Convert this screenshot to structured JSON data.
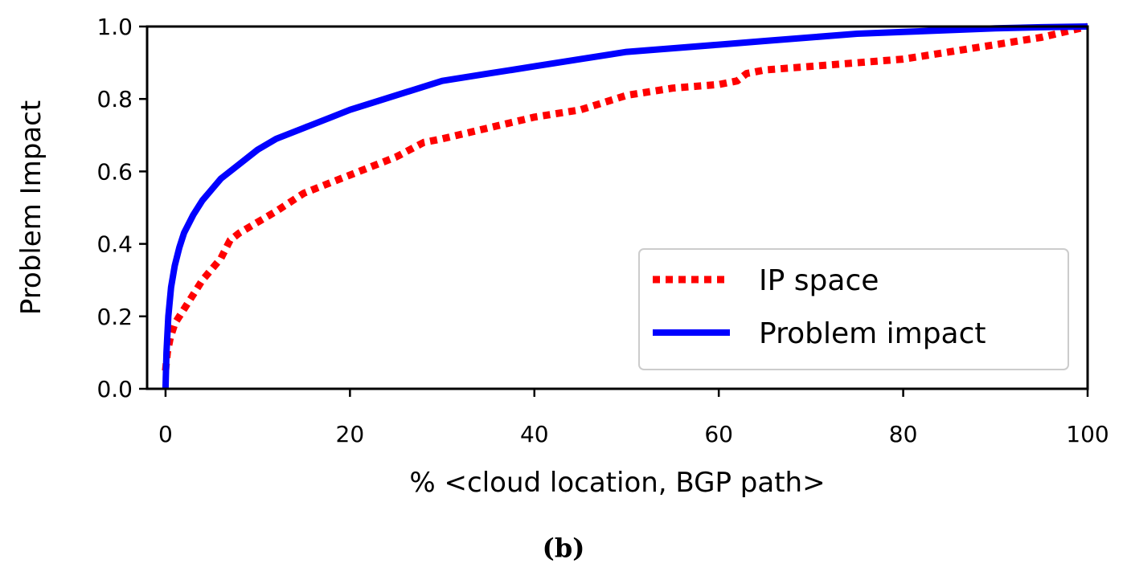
{
  "caption": "(b)",
  "chart_data": {
    "type": "line",
    "xlabel": "% <cloud location, BGP path>",
    "ylabel": "Problem Impact",
    "xlim": [
      -2,
      100
    ],
    "ylim": [
      0,
      1.0
    ],
    "xticks": [
      0,
      20,
      40,
      60,
      80,
      100
    ],
    "xtick_labels": [
      "0",
      "20",
      "40",
      "60",
      "80",
      "100"
    ],
    "yticks": [
      0.0,
      0.2,
      0.4,
      0.6,
      0.8,
      1.0
    ],
    "ytick_labels": [
      "0.0",
      "0.2",
      "0.4",
      "0.6",
      "0.8",
      "1.0"
    ],
    "grid": false,
    "legend_position": "lower right",
    "series": [
      {
        "name": "IP space",
        "color": "#ff0000",
        "style": "dotted",
        "x": [
          0,
          0.2,
          0.5,
          1,
          2,
          3,
          4,
          5,
          6,
          7,
          8,
          10,
          12,
          15,
          18,
          20,
          22,
          25,
          28,
          30,
          35,
          40,
          45,
          50,
          55,
          60,
          62,
          63,
          65,
          70,
          75,
          80,
          85,
          90,
          95,
          100
        ],
        "y": [
          0.05,
          0.1,
          0.14,
          0.18,
          0.22,
          0.26,
          0.3,
          0.33,
          0.36,
          0.41,
          0.43,
          0.46,
          0.49,
          0.54,
          0.57,
          0.59,
          0.61,
          0.64,
          0.68,
          0.69,
          0.72,
          0.75,
          0.77,
          0.81,
          0.83,
          0.84,
          0.85,
          0.87,
          0.88,
          0.89,
          0.9,
          0.91,
          0.93,
          0.95,
          0.97,
          1.0
        ]
      },
      {
        "name": "Problem impact",
        "color": "#0000ff",
        "style": "solid",
        "x": [
          0,
          0.1,
          0.3,
          0.6,
          1,
          1.5,
          2,
          3,
          4,
          5,
          6,
          8,
          10,
          12,
          15,
          18,
          20,
          25,
          30,
          35,
          40,
          45,
          50,
          55,
          60,
          65,
          70,
          75,
          80,
          85,
          90,
          95,
          100
        ],
        "y": [
          0,
          0.1,
          0.2,
          0.28,
          0.34,
          0.39,
          0.43,
          0.48,
          0.52,
          0.55,
          0.58,
          0.62,
          0.66,
          0.69,
          0.72,
          0.75,
          0.77,
          0.81,
          0.85,
          0.87,
          0.89,
          0.91,
          0.93,
          0.94,
          0.95,
          0.96,
          0.97,
          0.98,
          0.985,
          0.99,
          0.995,
          0.998,
          1.0
        ]
      }
    ]
  }
}
